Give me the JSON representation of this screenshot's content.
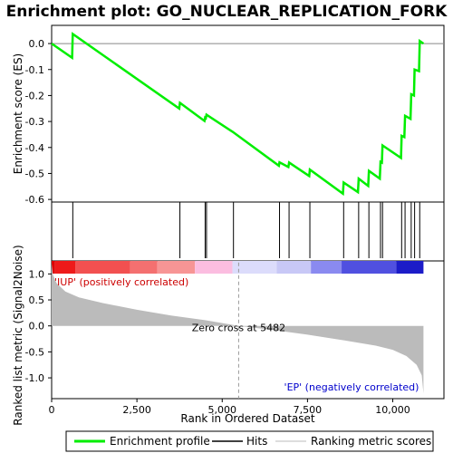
{
  "chart_data": {
    "type": "line",
    "title": "Enrichment plot: GO_NUCLEAR_REPLICATION_FORK",
    "xlabel": "Rank in Ordered Dataset",
    "ylabel_top": "Enrichment score (ES)",
    "ylabel_bottom": "Ranked list metric (Signal2Noise)",
    "x_range": [
      0,
      11500
    ],
    "top_ylim": [
      -0.61,
      0.07
    ],
    "bottom_ylim": [
      -1.4,
      1.25
    ],
    "x_ticks": [
      0,
      2500,
      5000,
      7500,
      10000
    ],
    "x_tick_labels": [
      "0",
      "2,500",
      "5,000",
      "7,500",
      "10,000"
    ],
    "top_y_ticks": [
      0.0,
      -0.1,
      -0.2,
      -0.3,
      -0.4,
      -0.5,
      -0.6
    ],
    "top_y_tick_labels": [
      "0.0",
      "-0.1",
      "-0.2",
      "-0.3",
      "-0.4",
      "-0.5",
      "-0.6"
    ],
    "bottom_y_ticks": [
      1.0,
      0.5,
      0.0,
      -0.5,
      -1.0
    ],
    "bottom_y_tick_labels": [
      "1.0",
      "0.5",
      "0.0",
      "-0.5",
      "-1.0"
    ],
    "hits": [
      620,
      3760,
      4500,
      4540,
      5330,
      6680,
      6960,
      7570,
      8560,
      9000,
      9300,
      9640,
      9700,
      10260,
      10360,
      10540,
      10640,
      10790
    ],
    "es_points": [
      [
        0,
        0.0
      ],
      [
        600,
        -0.055
      ],
      [
        620,
        0.037
      ],
      [
        3740,
        -0.25
      ],
      [
        3760,
        -0.228
      ],
      [
        4480,
        -0.298
      ],
      [
        4500,
        -0.285
      ],
      [
        4520,
        -0.287
      ],
      [
        4540,
        -0.274
      ],
      [
        5310,
        -0.34
      ],
      [
        5330,
        -0.342
      ],
      [
        6660,
        -0.47
      ],
      [
        6680,
        -0.457
      ],
      [
        6940,
        -0.475
      ],
      [
        6960,
        -0.458
      ],
      [
        7550,
        -0.51
      ],
      [
        7570,
        -0.485
      ],
      [
        8540,
        -0.578
      ],
      [
        8560,
        -0.535
      ],
      [
        8980,
        -0.572
      ],
      [
        9000,
        -0.52
      ],
      [
        9280,
        -0.548
      ],
      [
        9300,
        -0.49
      ],
      [
        9620,
        -0.52
      ],
      [
        9640,
        -0.455
      ],
      [
        9680,
        -0.458
      ],
      [
        9700,
        -0.392
      ],
      [
        10240,
        -0.44
      ],
      [
        10260,
        -0.355
      ],
      [
        10340,
        -0.36
      ],
      [
        10360,
        -0.278
      ],
      [
        10520,
        -0.29
      ],
      [
        10540,
        -0.195
      ],
      [
        10620,
        -0.2
      ],
      [
        10640,
        -0.1
      ],
      [
        10770,
        -0.106
      ],
      [
        10790,
        0.01
      ],
      [
        10900,
        0.0
      ]
    ],
    "metric_curve": [
      [
        0,
        1.2
      ],
      [
        40,
        0.98
      ],
      [
        150,
        0.82
      ],
      [
        400,
        0.66
      ],
      [
        800,
        0.55
      ],
      [
        1500,
        0.44
      ],
      [
        2500,
        0.31
      ],
      [
        3500,
        0.2
      ],
      [
        4500,
        0.11
      ],
      [
        5482,
        0.0
      ],
      [
        6500,
        -0.08
      ],
      [
        7500,
        -0.17
      ],
      [
        8500,
        -0.27
      ],
      [
        9500,
        -0.38
      ],
      [
        10000,
        -0.46
      ],
      [
        10400,
        -0.58
      ],
      [
        10700,
        -0.75
      ],
      [
        10850,
        -0.95
      ],
      [
        10900,
        -1.3
      ]
    ],
    "annotations": {
      "pos_label": "'IUP' (positively correlated)",
      "neg_label": "'EP' (negatively correlated)",
      "zero_cross": "Zero cross at 5482",
      "zero_cross_x": 5482
    },
    "legend": [
      {
        "label": "Enrichment profile",
        "color": "#00ee00"
      },
      {
        "label": "Hits",
        "color": "#000000"
      },
      {
        "label": "Ranking metric scores",
        "color": "#bbbbbb"
      }
    ],
    "colors": {
      "es_line": "#00ee00",
      "pos_text": "#cc0000",
      "neg_text": "#0000cc",
      "metric_fill": "#bbbbbb"
    }
  }
}
